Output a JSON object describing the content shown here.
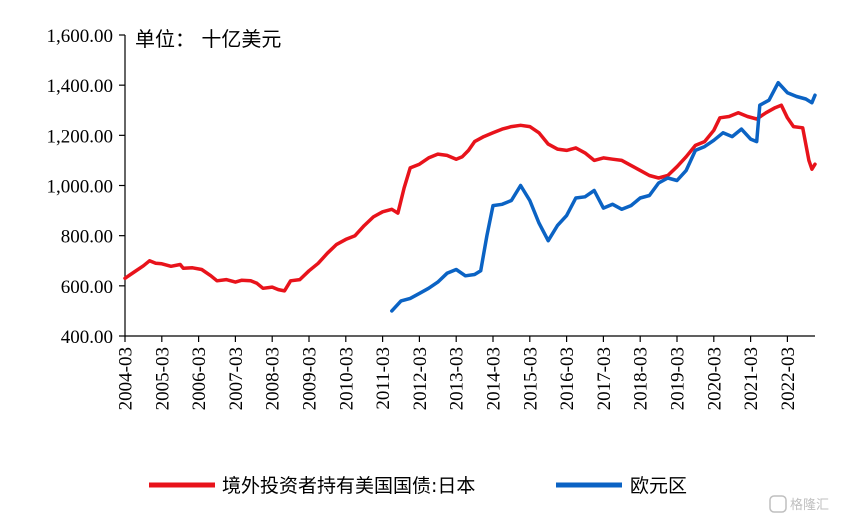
{
  "chart_data": {
    "type": "line",
    "unit_label": "单位：  十亿美元",
    "ylim": [
      400,
      1600
    ],
    "y_ticks": [
      400,
      600,
      800,
      1000,
      1200,
      1400,
      1600
    ],
    "y_tick_labels": [
      "400.00",
      "600.00",
      "800.00",
      "1,000.00",
      "1,200.00",
      "1,400.00",
      "1,600.00"
    ],
    "x_range": [
      "2004-03",
      "2022-12"
    ],
    "x_tick_labels": [
      "2004-03",
      "2005-03",
      "2006-03",
      "2007-03",
      "2008-03",
      "2009-03",
      "2010-03",
      "2011-03",
      "2012-03",
      "2013-03",
      "2014-03",
      "2015-03",
      "2016-03",
      "2017-03",
      "2018-03",
      "2019-03",
      "2020-03",
      "2021-03",
      "2022-03"
    ],
    "grid": false,
    "legend_position": "bottom",
    "series": [
      {
        "name": "境外投资者持有美国国债:日本",
        "color": "#e8131b",
        "points": [
          [
            "2004-03",
            630
          ],
          [
            "2004-06",
            655
          ],
          [
            "2004-09",
            680
          ],
          [
            "2004-11",
            700
          ],
          [
            "2005-01",
            690
          ],
          [
            "2005-03",
            688
          ],
          [
            "2005-06",
            678
          ],
          [
            "2005-09",
            685
          ],
          [
            "2005-10",
            670
          ],
          [
            "2006-01",
            672
          ],
          [
            "2006-04",
            665
          ],
          [
            "2006-07",
            640
          ],
          [
            "2006-09",
            620
          ],
          [
            "2006-12",
            625
          ],
          [
            "2007-03",
            615
          ],
          [
            "2007-05",
            622
          ],
          [
            "2007-08",
            620
          ],
          [
            "2007-10",
            610
          ],
          [
            "2007-12",
            590
          ],
          [
            "2008-03",
            595
          ],
          [
            "2008-05",
            585
          ],
          [
            "2008-07",
            580
          ],
          [
            "2008-09",
            620
          ],
          [
            "2008-12",
            625
          ],
          [
            "2009-03",
            660
          ],
          [
            "2009-06",
            690
          ],
          [
            "2009-09",
            730
          ],
          [
            "2009-12",
            765
          ],
          [
            "2010-03",
            785
          ],
          [
            "2010-06",
            800
          ],
          [
            "2010-09",
            840
          ],
          [
            "2010-12",
            875
          ],
          [
            "2011-03",
            895
          ],
          [
            "2011-06",
            905
          ],
          [
            "2011-08",
            890
          ],
          [
            "2011-10",
            990
          ],
          [
            "2011-12",
            1070
          ],
          [
            "2012-03",
            1085
          ],
          [
            "2012-06",
            1110
          ],
          [
            "2012-09",
            1125
          ],
          [
            "2012-12",
            1120
          ],
          [
            "2013-03",
            1105
          ],
          [
            "2013-05",
            1115
          ],
          [
            "2013-07",
            1140
          ],
          [
            "2013-09",
            1175
          ],
          [
            "2013-12",
            1195
          ],
          [
            "2014-03",
            1210
          ],
          [
            "2014-06",
            1225
          ],
          [
            "2014-09",
            1235
          ],
          [
            "2014-12",
            1240
          ],
          [
            "2015-03",
            1235
          ],
          [
            "2015-06",
            1210
          ],
          [
            "2015-09",
            1165
          ],
          [
            "2015-12",
            1145
          ],
          [
            "2016-03",
            1140
          ],
          [
            "2016-06",
            1150
          ],
          [
            "2016-09",
            1130
          ],
          [
            "2016-12",
            1100
          ],
          [
            "2017-03",
            1110
          ],
          [
            "2017-06",
            1105
          ],
          [
            "2017-09",
            1100
          ],
          [
            "2017-12",
            1080
          ],
          [
            "2018-03",
            1060
          ],
          [
            "2018-06",
            1040
          ],
          [
            "2018-09",
            1030
          ],
          [
            "2018-12",
            1040
          ],
          [
            "2019-03",
            1075
          ],
          [
            "2019-06",
            1115
          ],
          [
            "2019-09",
            1160
          ],
          [
            "2019-12",
            1175
          ],
          [
            "2020-03",
            1220
          ],
          [
            "2020-05",
            1270
          ],
          [
            "2020-08",
            1275
          ],
          [
            "2020-11",
            1290
          ],
          [
            "2021-02",
            1275
          ],
          [
            "2021-05",
            1265
          ],
          [
            "2021-08",
            1290
          ],
          [
            "2021-11",
            1310
          ],
          [
            "2022-01",
            1320
          ],
          [
            "2022-03",
            1270
          ],
          [
            "2022-05",
            1235
          ],
          [
            "2022-08",
            1230
          ],
          [
            "2022-10",
            1100
          ],
          [
            "2022-11",
            1065
          ],
          [
            "2022-12",
            1085
          ]
        ]
      },
      {
        "name": "欧元区",
        "color": "#0b63c4",
        "points": [
          [
            "2011-06",
            500
          ],
          [
            "2011-09",
            540
          ],
          [
            "2011-12",
            550
          ],
          [
            "2012-03",
            570
          ],
          [
            "2012-06",
            590
          ],
          [
            "2012-09",
            615
          ],
          [
            "2012-12",
            650
          ],
          [
            "2013-03",
            665
          ],
          [
            "2013-06",
            640
          ],
          [
            "2013-09",
            645
          ],
          [
            "2013-11",
            660
          ],
          [
            "2014-01",
            800
          ],
          [
            "2014-03",
            920
          ],
          [
            "2014-06",
            925
          ],
          [
            "2014-09",
            940
          ],
          [
            "2014-12",
            1000
          ],
          [
            "2015-03",
            940
          ],
          [
            "2015-06",
            850
          ],
          [
            "2015-09",
            780
          ],
          [
            "2015-12",
            840
          ],
          [
            "2016-03",
            880
          ],
          [
            "2016-06",
            950
          ],
          [
            "2016-09",
            955
          ],
          [
            "2016-12",
            980
          ],
          [
            "2017-03",
            910
          ],
          [
            "2017-06",
            925
          ],
          [
            "2017-09",
            905
          ],
          [
            "2017-12",
            920
          ],
          [
            "2018-03",
            950
          ],
          [
            "2018-06",
            960
          ],
          [
            "2018-09",
            1010
          ],
          [
            "2018-12",
            1030
          ],
          [
            "2019-03",
            1020
          ],
          [
            "2019-06",
            1060
          ],
          [
            "2019-09",
            1140
          ],
          [
            "2019-12",
            1155
          ],
          [
            "2020-03",
            1180
          ],
          [
            "2020-06",
            1210
          ],
          [
            "2020-09",
            1195
          ],
          [
            "2020-12",
            1225
          ],
          [
            "2021-03",
            1185
          ],
          [
            "2021-05",
            1175
          ],
          [
            "2021-06",
            1320
          ],
          [
            "2021-09",
            1340
          ],
          [
            "2021-12",
            1410
          ],
          [
            "2022-03",
            1370
          ],
          [
            "2022-06",
            1355
          ],
          [
            "2022-09",
            1345
          ],
          [
            "2022-11",
            1330
          ],
          [
            "2022-12",
            1360
          ]
        ]
      }
    ]
  },
  "watermark": {
    "text": "格隆汇"
  }
}
